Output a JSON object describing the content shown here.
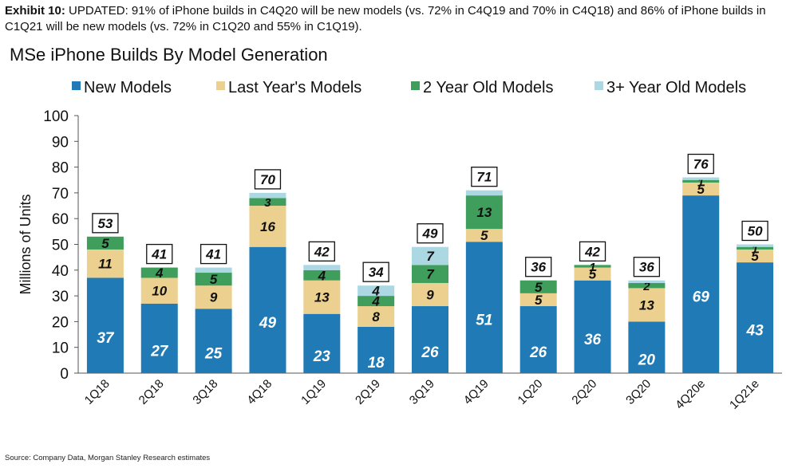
{
  "exhibit": {
    "label": "Exhibit 10:",
    "text": " UPDATED: 91% of iPhone builds in C4Q20 will be new models (vs. 72% in C4Q19 and 70% in C4Q18) and 86% of iPhone builds in C1Q21 will be new models (vs. 72% in C1Q20 and 55% in C1Q19)."
  },
  "source": "Source: Company Data, Morgan Stanley Research estimates",
  "chart_data": {
    "type": "bar",
    "stacked": true,
    "title": "MSe iPhone Builds By Model Generation",
    "ylabel": "Millions of Units",
    "xlabel": "",
    "ylim": [
      0,
      100
    ],
    "yticks": [
      0,
      10,
      20,
      30,
      40,
      50,
      60,
      70,
      80,
      90,
      100
    ],
    "legend_position": "top",
    "grid": false,
    "categories": [
      "1Q18",
      "2Q18",
      "3Q18",
      "4Q18",
      "1Q19",
      "2Q19",
      "3Q19",
      "4Q19",
      "1Q20",
      "2Q20",
      "3Q20",
      "4Q20e",
      "1Q21e"
    ],
    "series": [
      {
        "name": "New Models",
        "color": "#1f7ab5",
        "values": [
          37,
          27,
          25,
          49,
          23,
          18,
          26,
          51,
          26,
          36,
          20,
          69,
          43
        ]
      },
      {
        "name": "Last Year's Models",
        "color": "#ecd08f",
        "values": [
          11,
          10,
          9,
          16,
          13,
          8,
          9,
          5,
          5,
          5,
          13,
          5,
          5
        ]
      },
      {
        "name": "2 Year Old Models",
        "color": "#3f9e5b",
        "values": [
          5,
          4,
          5,
          3,
          4,
          4,
          7,
          13,
          5,
          1,
          2,
          1,
          1
        ]
      },
      {
        "name": "3+ Year Old Models",
        "color": "#acd8e4",
        "values": [
          0,
          0,
          2,
          2,
          2,
          4,
          7,
          2,
          0,
          0,
          1,
          1,
          1
        ]
      }
    ],
    "totals": [
      53,
      41,
      41,
      70,
      42,
      34,
      49,
      71,
      36,
      42,
      36,
      76,
      50
    ]
  }
}
